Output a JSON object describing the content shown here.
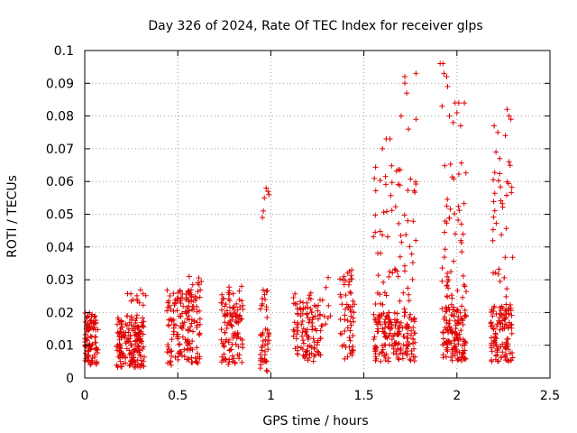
{
  "chart_data": {
    "type": "scatter",
    "title": "Day 326 of 2024, Rate Of TEC Index for receiver glps",
    "xlabel": "GPS time / hours",
    "ylabel": "ROTI / TECUs",
    "xlim": [
      0,
      2.5
    ],
    "ylim": [
      0,
      0.1
    ],
    "xticks": [
      0,
      0.5,
      1,
      1.5,
      2,
      2.5
    ],
    "xtick_labels": [
      "0",
      "0.5",
      "1",
      "1.5",
      "2",
      "2.5"
    ],
    "yticks": [
      0,
      0.01,
      0.02,
      0.03,
      0.04,
      0.05,
      0.06,
      0.07,
      0.08,
      0.09,
      0.1
    ],
    "ytick_labels": [
      "0",
      "0.01",
      "0.02",
      "0.03",
      "0.04",
      "0.05",
      "0.06",
      "0.07",
      "0.08",
      "0.09",
      "0.1"
    ],
    "grid": true,
    "marker": "+",
    "color": "#e00000",
    "clusters": [
      {
        "x": [
          0.0,
          0.07
        ],
        "y": [
          0.004,
          0.02
        ],
        "n": 90
      },
      {
        "x": [
          0.17,
          0.32
        ],
        "y": [
          0.003,
          0.019
        ],
        "n": 170
      },
      {
        "x": [
          0.23,
          0.33
        ],
        "y": [
          0.017,
          0.027
        ],
        "n": 14
      },
      {
        "x": [
          0.44,
          0.62
        ],
        "y": [
          0.003,
          0.027
        ],
        "n": 160
      },
      {
        "x": [
          0.55,
          0.63
        ],
        "y": [
          0.024,
          0.031
        ],
        "n": 12
      },
      {
        "x": [
          0.73,
          0.85
        ],
        "y": [
          0.004,
          0.028
        ],
        "n": 110
      },
      {
        "x": [
          0.94,
          0.99
        ],
        "y": [
          0.002,
          0.027
        ],
        "n": 45
      },
      {
        "x": [
          1.12,
          1.27
        ],
        "y": [
          0.005,
          0.026
        ],
        "n": 110
      },
      {
        "x": [
          1.27,
          1.32
        ],
        "y": [
          0.015,
          0.032
        ],
        "n": 10
      },
      {
        "x": [
          1.37,
          1.45
        ],
        "y": [
          0.005,
          0.034
        ],
        "n": 60
      },
      {
        "x": [
          1.55,
          1.78
        ],
        "y": [
          0.005,
          0.02
        ],
        "n": 160
      },
      {
        "x": [
          1.55,
          1.78
        ],
        "y": [
          0.02,
          0.065
        ],
        "n": 70
      },
      {
        "x": [
          1.92,
          2.05
        ],
        "y": [
          0.005,
          0.022
        ],
        "n": 120
      },
      {
        "x": [
          1.92,
          2.05
        ],
        "y": [
          0.022,
          0.066
        ],
        "n": 50
      },
      {
        "x": [
          2.18,
          2.3
        ],
        "y": [
          0.005,
          0.022
        ],
        "n": 110
      },
      {
        "x": [
          2.18,
          2.3
        ],
        "y": [
          0.022,
          0.065
        ],
        "n": 35
      }
    ],
    "points": [
      {
        "x": 0.955,
        "y": 0.049
      },
      {
        "x": 0.96,
        "y": 0.051
      },
      {
        "x": 0.965,
        "y": 0.055
      },
      {
        "x": 0.975,
        "y": 0.058
      },
      {
        "x": 0.985,
        "y": 0.057
      },
      {
        "x": 0.99,
        "y": 0.056
      },
      {
        "x": 1.62,
        "y": 0.073
      },
      {
        "x": 1.64,
        "y": 0.073
      },
      {
        "x": 1.6,
        "y": 0.07
      },
      {
        "x": 1.7,
        "y": 0.08
      },
      {
        "x": 1.72,
        "y": 0.092
      },
      {
        "x": 1.73,
        "y": 0.087
      },
      {
        "x": 1.72,
        "y": 0.09
      },
      {
        "x": 1.78,
        "y": 0.093
      },
      {
        "x": 1.74,
        "y": 0.076
      },
      {
        "x": 1.78,
        "y": 0.079
      },
      {
        "x": 1.91,
        "y": 0.096
      },
      {
        "x": 1.925,
        "y": 0.096
      },
      {
        "x": 1.93,
        "y": 0.093
      },
      {
        "x": 1.945,
        "y": 0.092
      },
      {
        "x": 1.95,
        "y": 0.089
      },
      {
        "x": 1.92,
        "y": 0.083
      },
      {
        "x": 1.96,
        "y": 0.08
      },
      {
        "x": 1.99,
        "y": 0.084
      },
      {
        "x": 2.01,
        "y": 0.084
      },
      {
        "x": 2.04,
        "y": 0.084
      },
      {
        "x": 2.0,
        "y": 0.081
      },
      {
        "x": 1.98,
        "y": 0.078
      },
      {
        "x": 2.02,
        "y": 0.077
      },
      {
        "x": 2.2,
        "y": 0.077
      },
      {
        "x": 2.22,
        "y": 0.075
      },
      {
        "x": 2.27,
        "y": 0.082
      },
      {
        "x": 2.28,
        "y": 0.08
      },
      {
        "x": 2.26,
        "y": 0.074
      },
      {
        "x": 2.29,
        "y": 0.079
      },
      {
        "x": 2.21,
        "y": 0.069
      },
      {
        "x": 2.23,
        "y": 0.067
      },
      {
        "x": 2.28,
        "y": 0.066
      }
    ]
  }
}
